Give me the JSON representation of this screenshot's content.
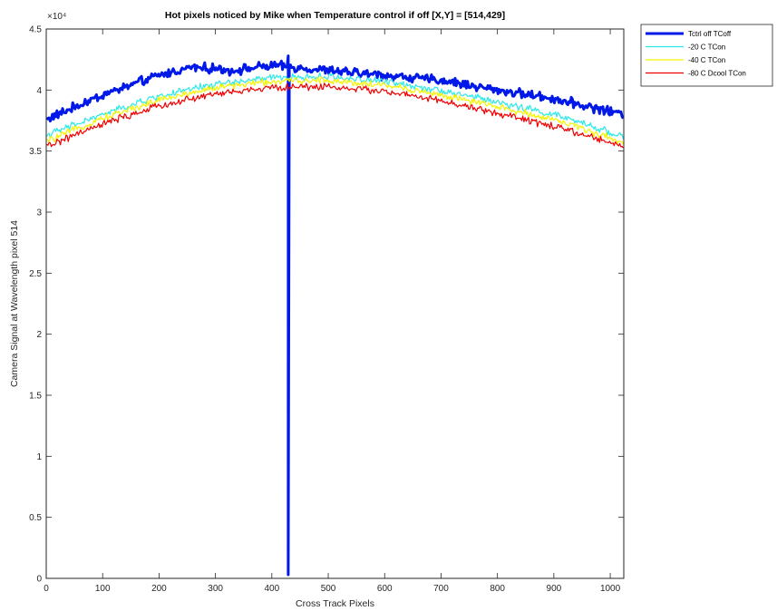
{
  "chart_data": {
    "type": "line",
    "title": "Hot pixels noticed by Mike when Temperature control if off  [X,Y] = [514,429]",
    "xlabel": "Cross Track Pixels",
    "ylabel": "Camera Signal at Wavelength pixel 514",
    "y_exponent_label": "×10⁴",
    "xlim": [
      0,
      1024
    ],
    "ylim": [
      0,
      4.5
    ],
    "y_scale_factor": 10000,
    "xticks": [
      "0",
      "100",
      "200",
      "300",
      "400",
      "500",
      "600",
      "700",
      "800",
      "900",
      "1000"
    ],
    "yticks": [
      "0",
      "0.5",
      "1",
      "1.5",
      "2",
      "2.5",
      "3",
      "3.5",
      "4",
      "4.5"
    ],
    "grid": false,
    "legend_position": "outside-top-right",
    "hot_pixel": {
      "x": 429,
      "y_min": 0.03,
      "y_max": 4.28
    },
    "series": [
      {
        "name": "Tctrl off  TCoff",
        "color": "#0018e8",
        "width": 3,
        "x": [
          1,
          100,
          200,
          260,
          330,
          400,
          500,
          600,
          700,
          800,
          900,
          1024
        ],
        "values": [
          3.76,
          3.96,
          4.12,
          4.19,
          4.16,
          4.2,
          4.16,
          4.12,
          4.08,
          4.0,
          3.93,
          3.8
        ],
        "noise": 0.045
      },
      {
        "name": "-20 C TCon",
        "color": "#2de8e8",
        "width": 1.2,
        "x": [
          1,
          100,
          200,
          300,
          400,
          500,
          600,
          700,
          800,
          900,
          1024
        ],
        "values": [
          3.63,
          3.8,
          3.95,
          4.05,
          4.1,
          4.11,
          4.07,
          4.0,
          3.9,
          3.8,
          3.62
        ],
        "noise": 0.035
      },
      {
        "name": "-40 C TCon",
        "color": "#f4f400",
        "width": 1.2,
        "x": [
          1,
          100,
          200,
          300,
          400,
          500,
          600,
          700,
          800,
          900,
          1024
        ],
        "values": [
          3.58,
          3.77,
          3.92,
          4.02,
          4.07,
          4.08,
          4.04,
          3.96,
          3.86,
          3.76,
          3.57
        ],
        "noise": 0.035
      },
      {
        "name": "-80 C Dcool TCon",
        "color": "#f00000",
        "width": 1.2,
        "x": [
          1,
          100,
          200,
          300,
          400,
          500,
          600,
          700,
          800,
          900,
          1024
        ],
        "values": [
          3.54,
          3.72,
          3.87,
          3.97,
          4.02,
          4.03,
          3.99,
          3.91,
          3.81,
          3.7,
          3.54
        ],
        "noise": 0.035
      }
    ]
  }
}
